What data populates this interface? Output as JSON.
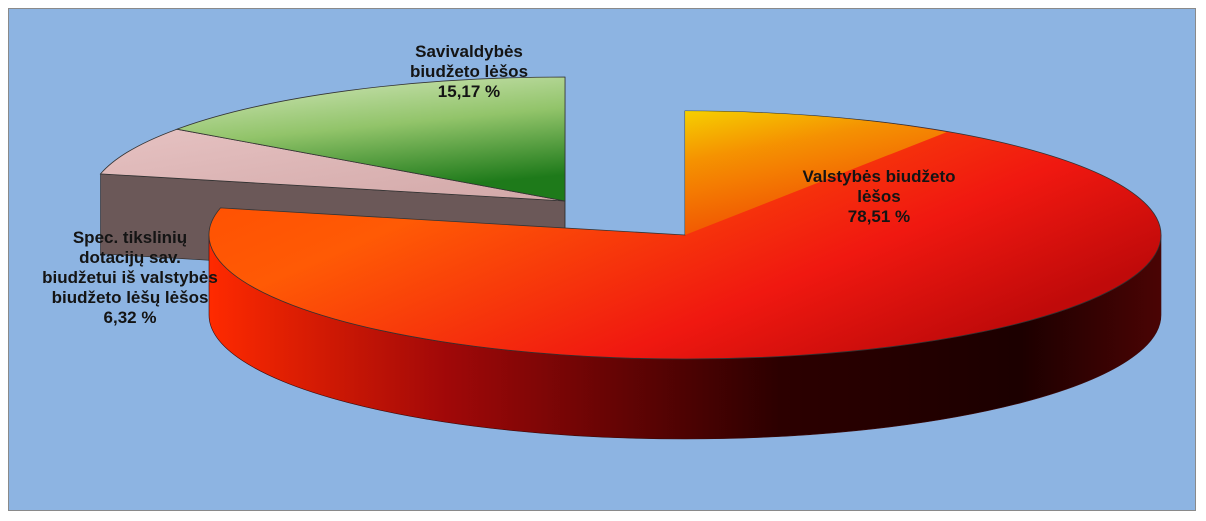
{
  "chart_data": {
    "type": "pie",
    "three_d": true,
    "exploded": true,
    "slices": [
      {
        "label_lines": [
          "Valstybės biudžeto",
          "lėšos"
        ],
        "value_text": "78,51 %",
        "value": 78.51,
        "color": "#e8301a"
      },
      {
        "label_lines": [
          "Spec. tikslinių",
          "dotacijų sav.",
          "biudžetui iš valstybės",
          "biudžeto lėšų lėšos"
        ],
        "value_text": "6,32 %",
        "value": 6.32,
        "color": "#d9b2b2"
      },
      {
        "label_lines": [
          "Savivaldybės",
          "biudžeto lėšos"
        ],
        "value_text": "15,17 %",
        "value": 15.17,
        "color": "#7fb04f"
      }
    ],
    "background": "#8db4e2"
  }
}
